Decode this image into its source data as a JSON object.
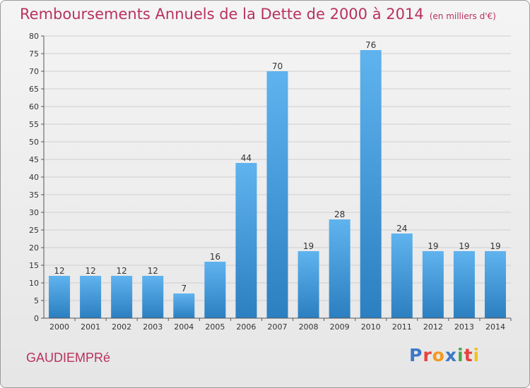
{
  "header": {
    "title": "Remboursements Annuels de la Dette de 2000 à 2014",
    "unit": "(en milliers d'€)"
  },
  "footer": {
    "commune": "GAUDIEMPRé",
    "brand": "Proxiti",
    "brand_letters": [
      {
        "ch": "P",
        "color": "#3c78c8"
      },
      {
        "ch": "r",
        "color": "#e8423c"
      },
      {
        "ch": "o",
        "color": "#f29a1f"
      },
      {
        "ch": "x",
        "color": "#3c78c8"
      },
      {
        "ch": "i",
        "color": "#4aa84a"
      },
      {
        "ch": "t",
        "color": "#e8423c"
      },
      {
        "ch": "i",
        "color": "#f2c21f"
      }
    ]
  },
  "colors": {
    "bar_top": "#5fb3ee",
    "bar_bottom": "#2c7fc0",
    "accent": "#b8325d",
    "grid": "#cfcfcf"
  },
  "chart_data": {
    "type": "bar",
    "categories": [
      "2000",
      "2001",
      "2002",
      "2003",
      "2004",
      "2005",
      "2006",
      "2007",
      "2008",
      "2009",
      "2010",
      "2011",
      "2012",
      "2013",
      "2014"
    ],
    "values": [
      12,
      12,
      12,
      12,
      7,
      16,
      44,
      70,
      19,
      28,
      76,
      24,
      19,
      19,
      19
    ],
    "ylim": [
      0,
      80
    ],
    "yticks": [
      0,
      5,
      10,
      15,
      20,
      25,
      30,
      35,
      40,
      45,
      50,
      55,
      60,
      65,
      70,
      75,
      80
    ],
    "grid": true,
    "data_labels": true
  }
}
